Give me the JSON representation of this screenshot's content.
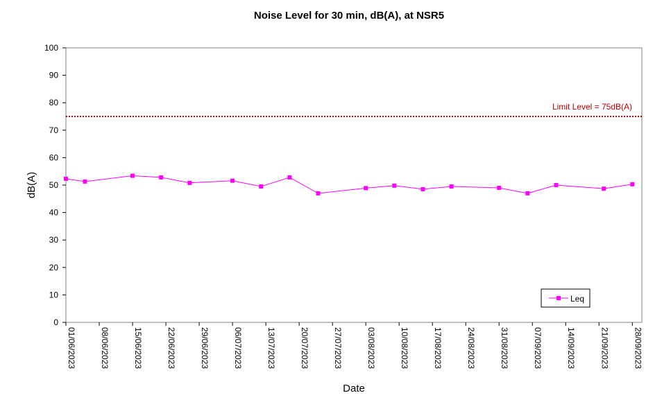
{
  "chart_data": {
    "type": "line",
    "title": "Noise Level for 30 min, dB(A), at NSR5",
    "xlabel": "Date",
    "ylabel": "dB(A)",
    "ylim": [
      0,
      100
    ],
    "yticks": [
      0,
      10,
      20,
      30,
      40,
      50,
      60,
      70,
      80,
      90,
      100
    ],
    "xlim": [
      "01/06/2023",
      "30/09/2023"
    ],
    "xticks": [
      "01/06/2023",
      "08/06/2023",
      "15/06/2023",
      "22/06/2023",
      "29/06/2023",
      "06/07/2023",
      "13/07/2023",
      "20/07/2023",
      "27/07/2023",
      "03/08/2023",
      "10/08/2023",
      "17/08/2023",
      "24/08/2023",
      "31/08/2023",
      "07/09/2023",
      "14/09/2023",
      "21/09/2023",
      "28/09/2023"
    ],
    "grid": false,
    "legend_position": "bottom-right",
    "series": [
      {
        "name": "Leq",
        "color": "#ff00ff",
        "marker": "square",
        "points": [
          {
            "x": "01/06/2023",
            "y": 52.3
          },
          {
            "x": "05/06/2023",
            "y": 51.3
          },
          {
            "x": "15/06/2023",
            "y": 53.4
          },
          {
            "x": "21/06/2023",
            "y": 52.8
          },
          {
            "x": "27/06/2023",
            "y": 50.8
          },
          {
            "x": "06/07/2023",
            "y": 51.6
          },
          {
            "x": "12/07/2023",
            "y": 49.5
          },
          {
            "x": "18/07/2023",
            "y": 52.8
          },
          {
            "x": "24/07/2023",
            "y": 47.0
          },
          {
            "x": "03/08/2023",
            "y": 48.9
          },
          {
            "x": "09/08/2023",
            "y": 49.8
          },
          {
            "x": "15/08/2023",
            "y": 48.5
          },
          {
            "x": "21/08/2023",
            "y": 49.5
          },
          {
            "x": "31/08/2023",
            "y": 49.0
          },
          {
            "x": "06/09/2023",
            "y": 47.0
          },
          {
            "x": "12/09/2023",
            "y": 50.0
          },
          {
            "x": "22/09/2023",
            "y": 48.7
          },
          {
            "x": "28/09/2023",
            "y": 50.3
          }
        ]
      }
    ],
    "limit_line": {
      "value": 75,
      "label": "Limit Level  = 75dB(A)",
      "color": "#c00000",
      "style": "dotted"
    }
  }
}
